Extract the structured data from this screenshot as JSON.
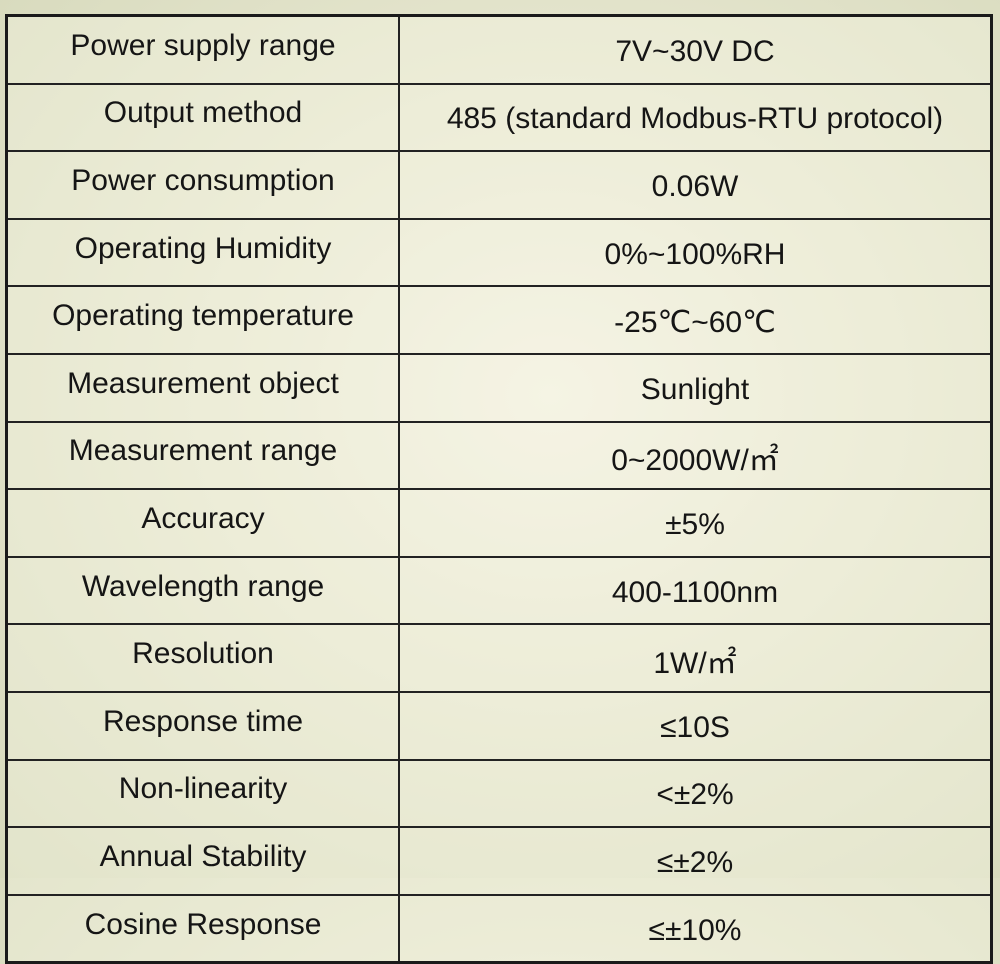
{
  "table": {
    "rows": [
      [
        "Power supply range",
        "7V~30V DC"
      ],
      [
        "Output method",
        "485 (standard Modbus-RTU protocol)"
      ],
      [
        "Power consumption",
        "0.06W"
      ],
      [
        "Operating Humidity",
        "0%~100%RH"
      ],
      [
        "Operating temperature",
        "-25℃~60℃"
      ],
      [
        "Measurement object",
        "Sunlight"
      ],
      [
        "Measurement range",
        "0~2000W/㎡"
      ],
      [
        "Accuracy",
        "±5%"
      ],
      [
        "Wavelength range",
        "400-1100nm"
      ],
      [
        "Resolution",
        "1W/㎡"
      ],
      [
        "Response time",
        "≤10S"
      ],
      [
        "Non-linearity",
        "<±2%"
      ],
      [
        "Annual Stability",
        "≤±2%"
      ],
      [
        "Cosine Response",
        "≤±10%"
      ]
    ]
  }
}
